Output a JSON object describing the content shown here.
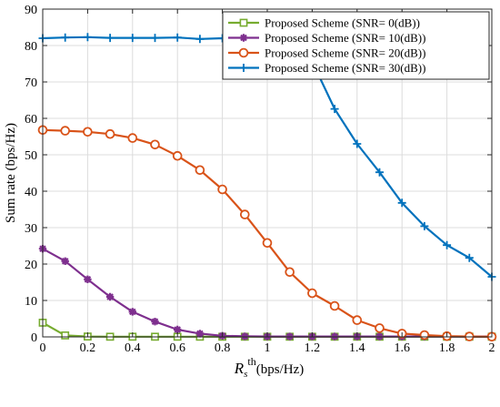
{
  "chart_data": {
    "type": "line",
    "xlabel": "R_s^th (bps/Hz)",
    "xlabel_parts": {
      "main": "R",
      "sub": "s",
      "sup": "th",
      "unit": "(bps/Hz)"
    },
    "ylabel": "Sum rate (bps/Hz)",
    "xlim": [
      0,
      2
    ],
    "ylim": [
      0,
      90
    ],
    "x_ticks": [
      0,
      0.2,
      0.4,
      0.6,
      0.8,
      1,
      1.2,
      1.4,
      1.6,
      1.8,
      2
    ],
    "y_ticks": [
      0,
      10,
      20,
      30,
      40,
      50,
      60,
      70,
      80,
      90
    ],
    "grid": true,
    "legend_position": "top-right",
    "x": [
      0,
      0.1,
      0.2,
      0.3,
      0.4,
      0.5,
      0.6,
      0.7,
      0.8,
      0.9,
      1.0,
      1.1,
      1.2,
      1.3,
      1.4,
      1.5,
      1.6,
      1.7,
      1.8,
      1.9,
      2.0
    ],
    "series": [
      {
        "name": "Proposed Scheme (SNR= 0(dB))",
        "color": "#77AC30",
        "marker": "square",
        "values": [
          3.9,
          0.4,
          0.1,
          0.05,
          0.05,
          0.05,
          0.05,
          0.05,
          0.05,
          0.05,
          0.05,
          0.05,
          0.05,
          0.05,
          0.05,
          0.05,
          0.05,
          0.05,
          0.05,
          0.05,
          0.05
        ]
      },
      {
        "name": "Proposed Scheme (SNR= 10(dB))",
        "color": "#7E2F8E",
        "marker": "star",
        "values": [
          24.2,
          20.8,
          15.8,
          11.0,
          6.9,
          4.2,
          2.0,
          0.9,
          0.3,
          0.15,
          0.1,
          0.1,
          0.1,
          0.1,
          0.1,
          0.1,
          0.1,
          0.1,
          0.1,
          0.1,
          0.1
        ]
      },
      {
        "name": "Proposed Scheme (SNR= 20(dB))",
        "color": "#D95319",
        "marker": "circle",
        "values": [
          56.8,
          56.6,
          56.3,
          55.7,
          54.6,
          52.8,
          49.7,
          45.8,
          40.5,
          33.6,
          25.8,
          17.8,
          12.0,
          8.5,
          4.6,
          2.4,
          0.9,
          0.5,
          0.2,
          0.1,
          0.05
        ]
      },
      {
        "name": "Proposed Scheme (SNR= 30(dB))",
        "color": "#0072BD",
        "marker": "plus",
        "values": [
          82.0,
          82.2,
          82.3,
          82.1,
          82.1,
          82.1,
          82.2,
          81.8,
          82.0,
          81.9,
          81.8,
          81.1,
          75.6,
          62.6,
          53.0,
          45.2,
          36.8,
          30.4,
          25.2,
          21.7,
          16.5
        ]
      }
    ]
  }
}
